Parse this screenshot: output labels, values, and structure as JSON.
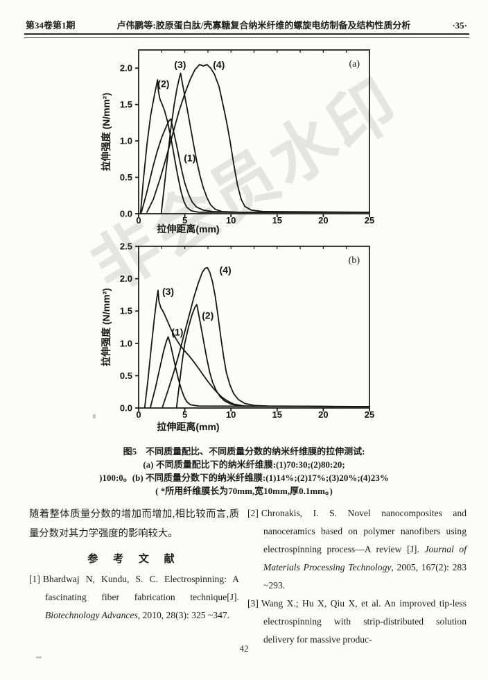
{
  "page": {
    "header": {
      "left": "第34卷第1期",
      "center": "卢伟鹏等:胶原蛋白肽/壳寡糖复合纳米纤维的螺旋电纺制备及结构性质分析",
      "right": "·35·"
    },
    "watermark": "非会员水印",
    "page_number": "42"
  },
  "figure": {
    "caption_line1": "图5　不同质量配比、不同质量分数的纳米纤维膜的拉伸测试:",
    "caption_line2": "(a) 不同质量配比下的纳米纤维膜:(1)70:30;(2)80:20;",
    "caption_line3": ")100:0。(b) 不同质量分数下的纳米纤维膜:(1)14%;(2)17%;(3)20%;(4)23%",
    "caption_line4": "( *所用纤维膜长为70mm,宽10mm,厚0.1mm。)"
  },
  "left_column": {
    "paragraph": "随着整体质量分数的增加而增加,相比较而言,质量分数对其力学强度的影响较大。",
    "references_heading": "参 考 文 献"
  },
  "references": [
    {
      "label": "[1]",
      "column": "left",
      "parts": [
        {
          "t": "Bhardwaj N, Kundu, S. C. Electrospinning: A fascinating fiber fabrication technique[J]. ",
          "i": false
        },
        {
          "t": "Biotechnology Advances",
          "i": true
        },
        {
          "t": ", 2010, 28(3): 325 ~347.",
          "i": false
        }
      ]
    },
    {
      "label": "[2]",
      "column": "right",
      "parts": [
        {
          "t": "Chronakis, I. S. Novel nanocomposites and nanoceramics based on polymer nanofibers using electrospinning process—A review [J]. ",
          "i": false
        },
        {
          "t": "Journal of Materials Processing Technology",
          "i": true
        },
        {
          "t": ", 2005, 167(2): 283 ~293.",
          "i": false
        }
      ]
    },
    {
      "label": "[3]",
      "column": "right",
      "parts": [
        {
          "t": "Wang X.; Hu X, Qiu X, et al. An improved tip-less electrospinning with strip-distributed solution delivery for massive produc-",
          "i": false
        }
      ]
    }
  ],
  "chart_data": [
    {
      "type": "line",
      "panel": "(a)",
      "xlabel": "拉伸距离(mm)",
      "ylabel": "拉伸强度 (N/mm²)",
      "xlim": [
        0,
        25
      ],
      "ylim": [
        0,
        2.25
      ],
      "xticks": [
        0,
        5,
        10,
        15,
        20,
        25
      ],
      "yticks": [
        0.0,
        0.5,
        1.0,
        1.5,
        2.0
      ],
      "grid": false,
      "line_color": "#151515",
      "series": [
        {
          "name": "(1)",
          "label_pos": [
            4.9,
            0.72
          ],
          "points": [
            [
              0.3,
              0.02
            ],
            [
              0.9,
              0.3
            ],
            [
              1.5,
              0.62
            ],
            [
              2.0,
              0.85
            ],
            [
              2.5,
              1.05
            ],
            [
              3.0,
              1.2
            ],
            [
              3.3,
              1.28
            ],
            [
              3.5,
              1.3
            ],
            [
              3.8,
              1.12
            ],
            [
              4.1,
              0.95
            ],
            [
              4.4,
              0.76
            ],
            [
              4.7,
              0.58
            ],
            [
              5.0,
              0.42
            ],
            [
              5.4,
              0.27
            ],
            [
              5.8,
              0.16
            ],
            [
              6.3,
              0.09
            ],
            [
              7.0,
              0.05
            ],
            [
              8.0,
              0.03
            ],
            [
              10,
              0.02
            ],
            [
              25,
              0.02
            ]
          ]
        },
        {
          "name": "(2)",
          "label_pos": [
            2.05,
            1.74
          ],
          "points": [
            [
              0.2,
              0.0
            ],
            [
              0.5,
              0.45
            ],
            [
              0.9,
              0.95
            ],
            [
              1.3,
              1.35
            ],
            [
              1.7,
              1.62
            ],
            [
              1.95,
              1.78
            ],
            [
              2.05,
              1.84
            ],
            [
              2.15,
              1.68
            ],
            [
              2.3,
              1.58
            ],
            [
              2.55,
              1.5
            ],
            [
              2.8,
              1.42
            ],
            [
              3.1,
              1.28
            ],
            [
              3.4,
              1.1
            ],
            [
              3.7,
              0.9
            ],
            [
              4.0,
              0.68
            ],
            [
              4.3,
              0.48
            ],
            [
              4.6,
              0.3
            ],
            [
              4.9,
              0.17
            ],
            [
              5.2,
              0.09
            ],
            [
              5.7,
              0.04
            ],
            [
              6.5,
              0.02
            ],
            [
              25,
              0.02
            ]
          ]
        },
        {
          "name": "(3)",
          "label_pos": [
            3.85,
            2.0
          ],
          "points": [
            [
              2.45,
              0.0
            ],
            [
              2.8,
              0.4
            ],
            [
              3.15,
              0.8
            ],
            [
              3.5,
              1.18
            ],
            [
              3.85,
              1.5
            ],
            [
              4.15,
              1.72
            ],
            [
              4.4,
              1.86
            ],
            [
              4.55,
              1.93
            ],
            [
              4.7,
              1.82
            ],
            [
              4.95,
              1.65
            ],
            [
              5.25,
              1.45
            ],
            [
              5.6,
              1.2
            ],
            [
              5.95,
              0.95
            ],
            [
              6.3,
              0.72
            ],
            [
              6.65,
              0.52
            ],
            [
              7.0,
              0.36
            ],
            [
              7.4,
              0.22
            ],
            [
              7.8,
              0.12
            ],
            [
              8.3,
              0.06
            ],
            [
              9.0,
              0.03
            ],
            [
              11,
              0.02
            ],
            [
              25,
              0.02
            ]
          ]
        },
        {
          "name": "(4)",
          "label_pos": [
            8.05,
            2.0
          ],
          "points": [
            [
              0.9,
              0.02
            ],
            [
              1.6,
              0.2
            ],
            [
              2.3,
              0.47
            ],
            [
              3.0,
              0.78
            ],
            [
              3.7,
              1.1
            ],
            [
              4.4,
              1.42
            ],
            [
              5.0,
              1.65
            ],
            [
              5.6,
              1.85
            ],
            [
              6.1,
              1.98
            ],
            [
              6.6,
              2.05
            ],
            [
              7.0,
              2.03
            ],
            [
              7.4,
              2.05
            ],
            [
              7.8,
              2.0
            ],
            [
              8.2,
              1.92
            ],
            [
              8.7,
              1.75
            ],
            [
              9.1,
              1.52
            ],
            [
              9.5,
              1.28
            ],
            [
              9.9,
              1.0
            ],
            [
              10.3,
              0.68
            ],
            [
              10.7,
              0.4
            ],
            [
              11.1,
              0.2
            ],
            [
              11.5,
              0.1
            ],
            [
              12.2,
              0.05
            ],
            [
              13.5,
              0.03
            ],
            [
              25,
              0.02
            ]
          ]
        }
      ]
    },
    {
      "type": "line",
      "panel": "(b)",
      "xlabel": "拉伸距离(mm)",
      "ylabel": "拉伸强度 (N/mm²)",
      "xlim": [
        0,
        25
      ],
      "ylim": [
        0,
        2.5
      ],
      "xticks": [
        0,
        5,
        10,
        15,
        20,
        25
      ],
      "yticks": [
        0.0,
        0.5,
        1.0,
        1.5,
        2.0,
        2.5
      ],
      "grid": false,
      "line_color": "#151515",
      "series": [
        {
          "name": "(1)",
          "label_pos": [
            3.55,
            1.12
          ],
          "points": [
            [
              1.25,
              0.0
            ],
            [
              1.8,
              0.3
            ],
            [
              2.3,
              0.62
            ],
            [
              2.7,
              0.88
            ],
            [
              3.0,
              1.03
            ],
            [
              3.2,
              1.1
            ],
            [
              3.45,
              0.98
            ],
            [
              3.7,
              0.82
            ],
            [
              4.0,
              0.63
            ],
            [
              4.3,
              0.45
            ],
            [
              4.6,
              0.3
            ],
            [
              4.9,
              0.18
            ],
            [
              5.2,
              0.1
            ],
            [
              5.6,
              0.05
            ],
            [
              6.5,
              0.03
            ],
            [
              25,
              0.02
            ]
          ]
        },
        {
          "name": "(2)",
          "label_pos": [
            6.85,
            1.38
          ],
          "points": [
            [
              4.1,
              0.0
            ],
            [
              4.4,
              0.35
            ],
            [
              4.7,
              0.7
            ],
            [
              5.0,
              1.0
            ],
            [
              5.4,
              1.25
            ],
            [
              5.8,
              1.45
            ],
            [
              6.1,
              1.56
            ],
            [
              6.3,
              1.6
            ],
            [
              6.5,
              1.45
            ],
            [
              6.8,
              1.22
            ],
            [
              7.1,
              0.98
            ],
            [
              7.4,
              0.75
            ],
            [
              7.7,
              0.55
            ],
            [
              8.0,
              0.4
            ],
            [
              8.4,
              0.27
            ],
            [
              8.8,
              0.18
            ],
            [
              9.3,
              0.11
            ],
            [
              10.0,
              0.06
            ],
            [
              11,
              0.03
            ],
            [
              25,
              0.02
            ]
          ]
        },
        {
          "name": "(3)",
          "label_pos": [
            2.55,
            1.75
          ],
          "points": [
            [
              0.65,
              0.0
            ],
            [
              1.0,
              0.42
            ],
            [
              1.35,
              0.92
            ],
            [
              1.7,
              1.38
            ],
            [
              1.95,
              1.68
            ],
            [
              2.1,
              1.82
            ],
            [
              2.2,
              1.65
            ],
            [
              2.4,
              1.55
            ],
            [
              2.7,
              1.48
            ],
            [
              3.1,
              1.35
            ],
            [
              3.5,
              1.22
            ],
            [
              4.0,
              1.08
            ],
            [
              4.5,
              0.97
            ],
            [
              5.0,
              0.88
            ],
            [
              5.5,
              0.8
            ],
            [
              6.0,
              0.71
            ],
            [
              6.5,
              0.61
            ],
            [
              7.0,
              0.51
            ],
            [
              7.5,
              0.41
            ],
            [
              8.0,
              0.32
            ],
            [
              8.5,
              0.24
            ],
            [
              9.0,
              0.17
            ],
            [
              9.6,
              0.11
            ],
            [
              10.3,
              0.06
            ],
            [
              11.5,
              0.03
            ],
            [
              25,
              0.02
            ]
          ]
        },
        {
          "name": "(4)",
          "label_pos": [
            8.75,
            2.08
          ],
          "points": [
            [
              2.6,
              0.02
            ],
            [
              3.2,
              0.28
            ],
            [
              3.8,
              0.55
            ],
            [
              4.4,
              0.85
            ],
            [
              5.0,
              1.18
            ],
            [
              5.5,
              1.45
            ],
            [
              6.0,
              1.72
            ],
            [
              6.5,
              1.95
            ],
            [
              6.9,
              2.1
            ],
            [
              7.2,
              2.16
            ],
            [
              7.45,
              2.17
            ],
            [
              7.7,
              2.1
            ],
            [
              8.0,
              1.95
            ],
            [
              8.3,
              1.72
            ],
            [
              8.6,
              1.42
            ],
            [
              8.9,
              1.1
            ],
            [
              9.2,
              0.8
            ],
            [
              9.5,
              0.55
            ],
            [
              9.9,
              0.35
            ],
            [
              10.3,
              0.22
            ],
            [
              10.8,
              0.13
            ],
            [
              11.5,
              0.07
            ],
            [
              12.5,
              0.04
            ],
            [
              14,
              0.03
            ],
            [
              25,
              0.02
            ]
          ]
        }
      ]
    }
  ]
}
